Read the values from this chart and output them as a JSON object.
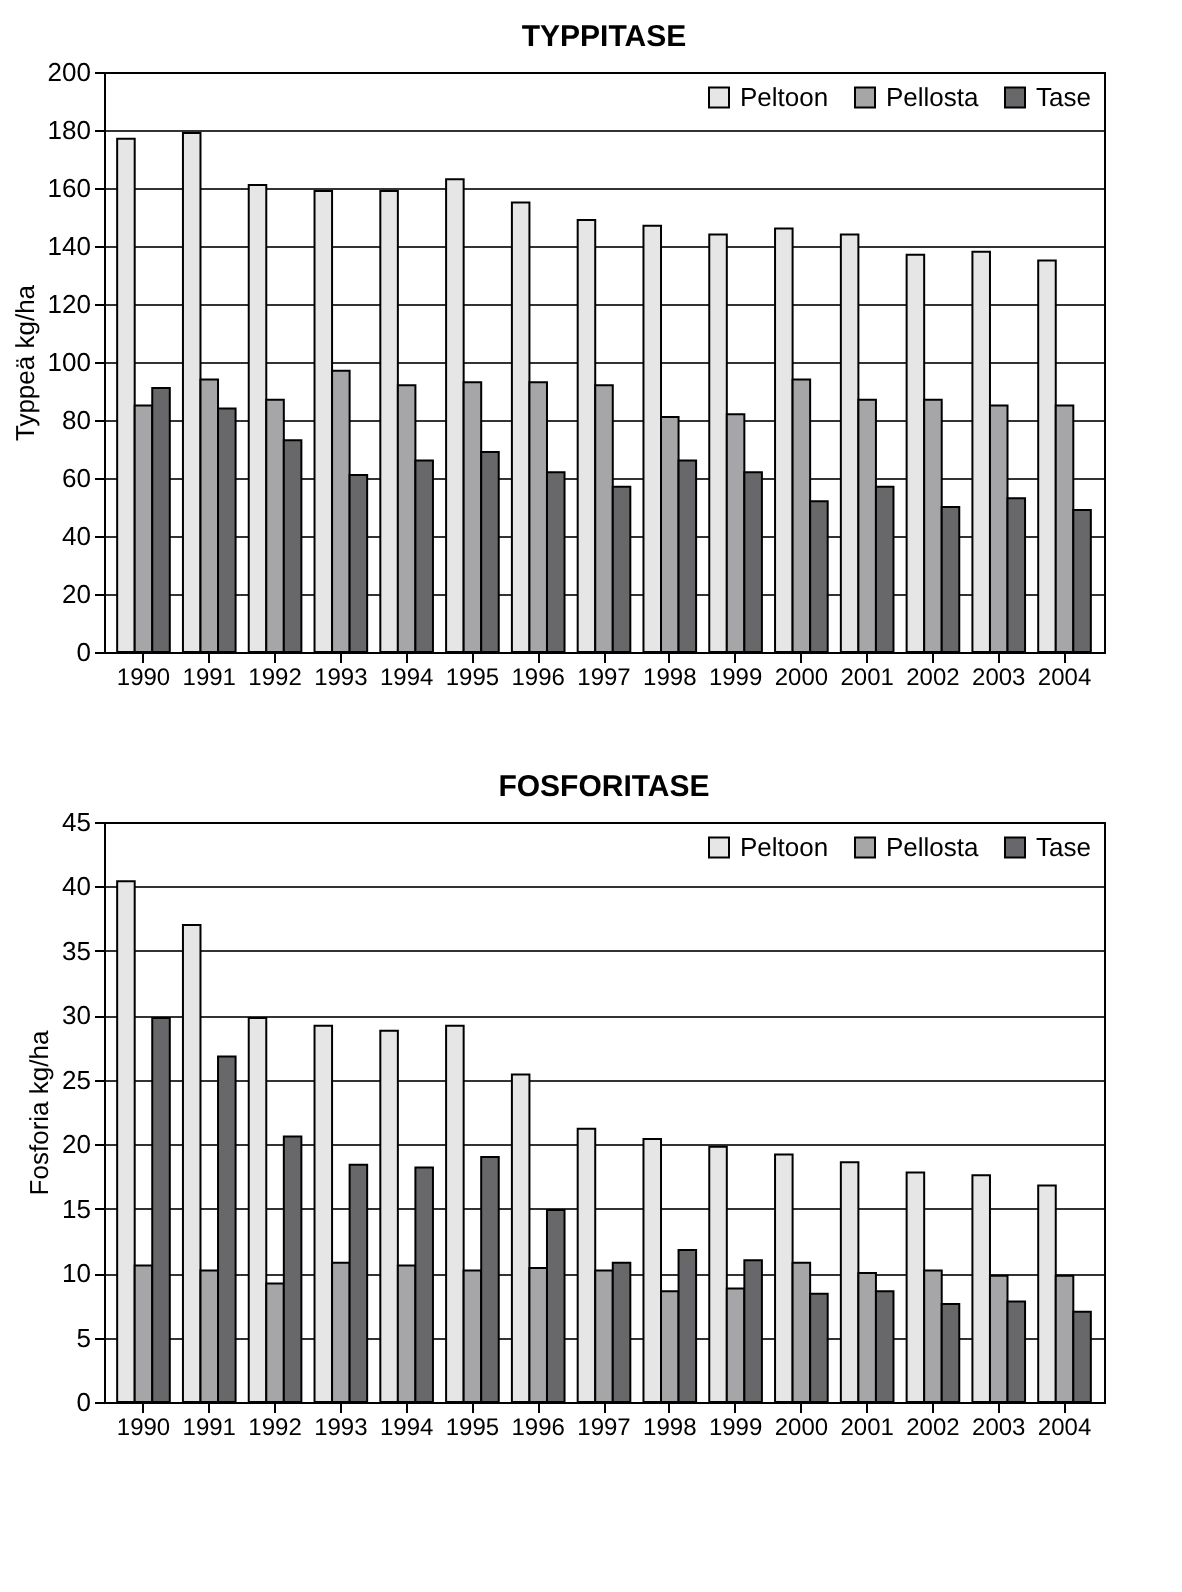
{
  "chart_data": [
    {
      "type": "bar",
      "title": "TYPPITASE",
      "ylabel": "Typpeä kg/ha",
      "categories": [
        "1990",
        "1991",
        "1992",
        "1993",
        "1994",
        "1995",
        "1996",
        "1997",
        "1998",
        "1999",
        "2000",
        "2001",
        "2002",
        "2003",
        "2004"
      ],
      "series": [
        {
          "name": "Peltoon",
          "color": "#e6e6e6",
          "values": [
            177,
            179,
            161,
            159,
            159,
            163,
            155,
            149,
            147,
            144,
            146,
            144,
            137,
            138,
            135
          ]
        },
        {
          "name": "Pellosta",
          "color": "#a6a6a8",
          "values": [
            85,
            94,
            87,
            97,
            92,
            93,
            93,
            92,
            81,
            82,
            94,
            87,
            87,
            85,
            85
          ]
        },
        {
          "name": "Tase",
          "color": "#68686a",
          "values": [
            91,
            84,
            73,
            61,
            66,
            69,
            62,
            57,
            66,
            62,
            52,
            57,
            50,
            53,
            49
          ]
        }
      ],
      "ylim": [
        0,
        200
      ],
      "yticks": [
        0,
        20,
        40,
        60,
        80,
        100,
        120,
        140,
        160,
        180,
        200
      ],
      "grid": "y",
      "legend": "top right"
    },
    {
      "type": "bar",
      "title": "FOSFORITASE",
      "ylabel": "Fosforia kg/ha",
      "categories": [
        "1990",
        "1991",
        "1992",
        "1993",
        "1994",
        "1995",
        "1996",
        "1997",
        "1998",
        "1999",
        "2000",
        "2001",
        "2002",
        "2003",
        "2004"
      ],
      "series": [
        {
          "name": "Peltoon",
          "color": "#e6e6e6",
          "values": [
            40.4,
            37,
            29.8,
            29.2,
            28.8,
            29.2,
            25.4,
            21.2,
            20.4,
            19.8,
            19.2,
            18.6,
            17.8,
            17.6,
            16.8
          ]
        },
        {
          "name": "Pellosta",
          "color": "#a6a6a8",
          "values": [
            10.6,
            10.2,
            9.2,
            10.8,
            10.6,
            10.2,
            10.4,
            10.2,
            8.6,
            8.8,
            10.8,
            10,
            10.2,
            9.8,
            9.8
          ]
        },
        {
          "name": "Tase",
          "color": "#68686a",
          "values": [
            29.8,
            26.8,
            20.6,
            18.4,
            18.2,
            19,
            14.9,
            10.8,
            11.8,
            11,
            8.4,
            8.6,
            7.6,
            7.8,
            7
          ]
        }
      ],
      "ylim": [
        0,
        45
      ],
      "yticks": [
        0,
        5,
        10,
        15,
        20,
        25,
        30,
        35,
        40,
        45
      ],
      "grid": "y",
      "legend": "top right"
    }
  ]
}
